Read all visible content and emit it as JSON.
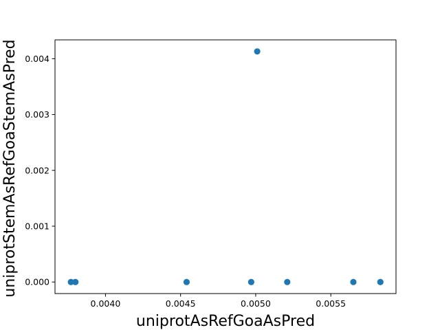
{
  "chart_data": {
    "type": "scatter",
    "xlabel": "uniprotAsRefGoaAsPred",
    "ylabel": "uniprotStemAsRefGoaStemAsPred",
    "xlim": [
      0.003664,
      0.005934
    ],
    "ylim": [
      -0.000207,
      0.004337
    ],
    "x_ticks": [
      {
        "value": 0.004,
        "label": "0.0040"
      },
      {
        "value": 0.0045,
        "label": "0.0045"
      },
      {
        "value": 0.005,
        "label": "0.0050"
      },
      {
        "value": 0.0055,
        "label": "0.0055"
      }
    ],
    "y_ticks": [
      {
        "value": 0.0,
        "label": "0.000"
      },
      {
        "value": 0.001,
        "label": "0.001"
      },
      {
        "value": 0.002,
        "label": "0.002"
      },
      {
        "value": 0.003,
        "label": "0.003"
      },
      {
        "value": 0.004,
        "label": "0.004"
      }
    ],
    "points": [
      {
        "x": 0.00377,
        "y": 0.0
      },
      {
        "x": 0.0038,
        "y": 0.0
      },
      {
        "x": 0.00454,
        "y": 0.0
      },
      {
        "x": 0.00497,
        "y": 0.0
      },
      {
        "x": 0.00501,
        "y": 0.00413
      },
      {
        "x": 0.00521,
        "y": 0.0
      },
      {
        "x": 0.00565,
        "y": 0.0
      },
      {
        "x": 0.00583,
        "y": 0.0
      }
    ],
    "marker_color": "#1f77b4",
    "grid": false,
    "legend": "none"
  }
}
